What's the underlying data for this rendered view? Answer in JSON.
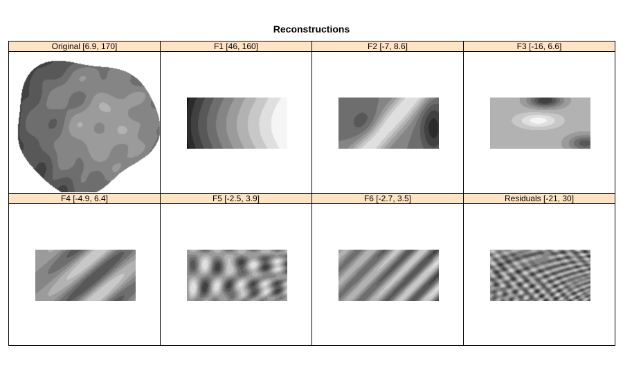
{
  "colors": {
    "strip_bg": "#ffe4c4",
    "border": "#000000",
    "background": "#ffffff"
  },
  "chart_data": {
    "type": "heatmap",
    "title": "Reconstructions",
    "layout": {
      "rows": 2,
      "cols": 4
    },
    "colormap": "grayscale",
    "panels": [
      {
        "label": "Original [6.9, 170]",
        "range": [
          6.9,
          170
        ],
        "shape": "blob"
      },
      {
        "label": "F1 [46, 160]",
        "range": [
          46,
          160
        ],
        "shape": "rect"
      },
      {
        "label": "F2 [-7, 8.6]",
        "range": [
          -7,
          8.6
        ],
        "shape": "rect"
      },
      {
        "label": "F3 [-16, 6.6]",
        "range": [
          -16,
          6.6
        ],
        "shape": "rect"
      },
      {
        "label": "F4 [-4.9, 6.4]",
        "range": [
          -4.9,
          6.4
        ],
        "shape": "rect"
      },
      {
        "label": "F5 [-2.5, 3.9]",
        "range": [
          -2.5,
          3.9
        ],
        "shape": "rect"
      },
      {
        "label": "F6 [-2.7, 3.5]",
        "range": [
          -2.7,
          3.5
        ],
        "shape": "rect"
      },
      {
        "label": "Residuals [-21, 30]",
        "range": [
          -21,
          30
        ],
        "shape": "rect"
      }
    ]
  }
}
